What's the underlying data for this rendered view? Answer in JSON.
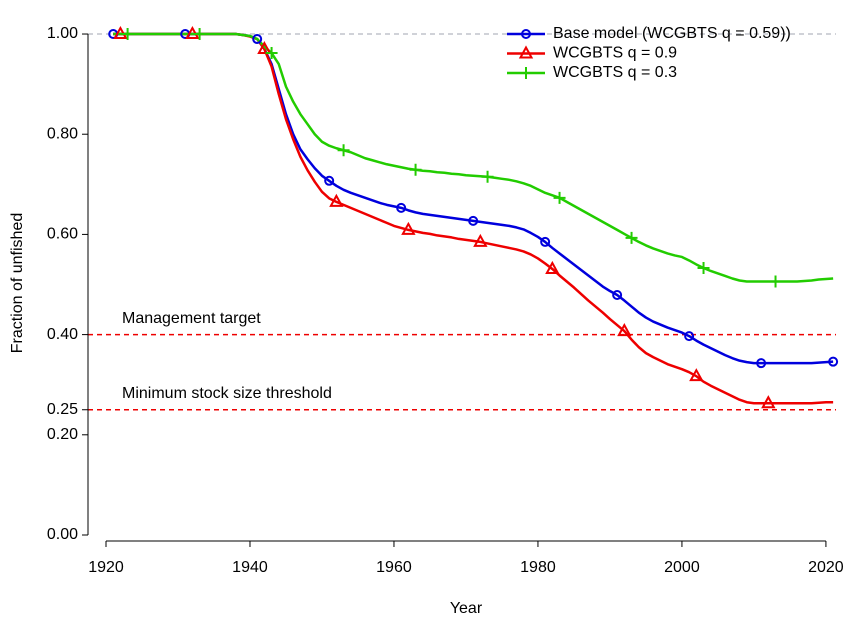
{
  "chart_data": {
    "type": "line",
    "xlabel": "Year",
    "ylabel": "Fraction of unfished",
    "x": [
      1921,
      1922,
      1923,
      1924,
      1925,
      1926,
      1927,
      1928,
      1929,
      1930,
      1931,
      1932,
      1933,
      1934,
      1935,
      1936,
      1937,
      1938,
      1939,
      1940,
      1941,
      1942,
      1943,
      1944,
      1945,
      1946,
      1947,
      1948,
      1949,
      1950,
      1951,
      1952,
      1953,
      1954,
      1955,
      1956,
      1957,
      1958,
      1959,
      1960,
      1961,
      1962,
      1963,
      1964,
      1965,
      1966,
      1967,
      1968,
      1969,
      1970,
      1971,
      1972,
      1973,
      1974,
      1975,
      1976,
      1977,
      1978,
      1979,
      1980,
      1981,
      1982,
      1983,
      1984,
      1985,
      1986,
      1987,
      1988,
      1989,
      1990,
      1991,
      1992,
      1993,
      1994,
      1995,
      1996,
      1997,
      1998,
      1999,
      2000,
      2001,
      2002,
      2003,
      2004,
      2005,
      2006,
      2007,
      2008,
      2009,
      2010,
      2011,
      2012,
      2013,
      2014,
      2015,
      2016,
      2017,
      2018,
      2019,
      2020,
      2021
    ],
    "series": [
      {
        "name": "Base model (WCGBTS q = 0.59))",
        "color": "#0000dd",
        "marker": "circle",
        "values": [
          1,
          1,
          1,
          1,
          1,
          1,
          1,
          1,
          1,
          1,
          1,
          1,
          1,
          1,
          1,
          1,
          1,
          1,
          0.998,
          0.996,
          0.99,
          0.97,
          0.94,
          0.89,
          0.84,
          0.8,
          0.77,
          0.75,
          0.732,
          0.717,
          0.707,
          0.697,
          0.689,
          0.683,
          0.678,
          0.673,
          0.668,
          0.663,
          0.659,
          0.656,
          0.653,
          0.648,
          0.644,
          0.641,
          0.639,
          0.637,
          0.635,
          0.633,
          0.631,
          0.629,
          0.627,
          0.625,
          0.623,
          0.621,
          0.619,
          0.617,
          0.614,
          0.61,
          0.603,
          0.595,
          0.585,
          0.573,
          0.562,
          0.551,
          0.54,
          0.529,
          0.518,
          0.507,
          0.496,
          0.487,
          0.479,
          0.468,
          0.456,
          0.444,
          0.434,
          0.426,
          0.42,
          0.414,
          0.409,
          0.404,
          0.397,
          0.388,
          0.38,
          0.373,
          0.366,
          0.359,
          0.353,
          0.348,
          0.345,
          0.343,
          0.343,
          0.343,
          0.343,
          0.343,
          0.343,
          0.343,
          0.343,
          0.343,
          0.344,
          0.345,
          0.346
        ]
      },
      {
        "name": "WCGBTS q = 0.9",
        "color": "#ee0000",
        "marker": "triangle",
        "values": [
          1,
          1,
          1,
          1,
          1,
          1,
          1,
          1,
          1,
          1,
          1,
          1,
          1,
          1,
          1,
          1,
          1,
          1,
          0.998,
          0.995,
          0.99,
          0.97,
          0.935,
          0.88,
          0.83,
          0.79,
          0.755,
          0.728,
          0.705,
          0.685,
          0.672,
          0.665,
          0.659,
          0.653,
          0.647,
          0.641,
          0.635,
          0.629,
          0.623,
          0.617,
          0.613,
          0.609,
          0.606,
          0.603,
          0.601,
          0.598,
          0.596,
          0.594,
          0.591,
          0.589,
          0.587,
          0.585,
          0.582,
          0.579,
          0.576,
          0.573,
          0.57,
          0.566,
          0.56,
          0.552,
          0.542,
          0.531,
          0.518,
          0.506,
          0.494,
          0.481,
          0.468,
          0.456,
          0.444,
          0.431,
          0.419,
          0.407,
          0.39,
          0.375,
          0.363,
          0.355,
          0.348,
          0.341,
          0.336,
          0.331,
          0.325,
          0.317,
          0.306,
          0.298,
          0.291,
          0.284,
          0.277,
          0.27,
          0.265,
          0.263,
          0.263,
          0.263,
          0.263,
          0.263,
          0.263,
          0.263,
          0.263,
          0.263,
          0.264,
          0.265,
          0.265
        ]
      },
      {
        "name": "WCGBTS q = 0.3",
        "color": "#22cc00",
        "marker": "plus",
        "values": [
          1,
          1,
          1,
          1,
          1,
          1,
          1,
          1,
          1,
          1,
          1,
          1,
          1,
          1,
          1,
          1,
          1,
          1,
          0.998,
          0.996,
          0.99,
          0.975,
          0.962,
          0.94,
          0.895,
          0.865,
          0.84,
          0.82,
          0.8,
          0.785,
          0.777,
          0.772,
          0.768,
          0.764,
          0.758,
          0.752,
          0.748,
          0.744,
          0.74,
          0.737,
          0.734,
          0.731,
          0.729,
          0.727,
          0.726,
          0.724,
          0.723,
          0.721,
          0.72,
          0.718,
          0.717,
          0.716,
          0.715,
          0.713,
          0.711,
          0.709,
          0.706,
          0.702,
          0.697,
          0.69,
          0.683,
          0.678,
          0.673,
          0.665,
          0.657,
          0.649,
          0.641,
          0.633,
          0.625,
          0.617,
          0.609,
          0.601,
          0.593,
          0.585,
          0.578,
          0.572,
          0.567,
          0.562,
          0.558,
          0.555,
          0.548,
          0.54,
          0.533,
          0.527,
          0.522,
          0.517,
          0.512,
          0.508,
          0.506,
          0.506,
          0.506,
          0.506,
          0.506,
          0.506,
          0.506,
          0.506,
          0.507,
          0.508,
          0.51,
          0.511,
          0.512
        ]
      }
    ],
    "xlim": [
      1917.5,
      2021.4
    ],
    "xticks": [
      1920,
      1940,
      1960,
      1980,
      2000,
      2020
    ],
    "ylim": [
      -0.012,
      1.024
    ],
    "yticks": [
      {
        "value": 0,
        "label": "0.00"
      },
      {
        "value": 0.2,
        "label": "0.20"
      },
      {
        "value": 0.25,
        "label": "0.25"
      },
      {
        "value": 0.4,
        "label": "0.40"
      },
      {
        "value": 0.6,
        "label": "0.60"
      },
      {
        "value": 0.8,
        "label": "0.80"
      },
      {
        "value": 1,
        "label": "1.00"
      }
    ],
    "hlines": [
      {
        "value": 1,
        "color": "#c0c4cc"
      },
      {
        "value": 0.4,
        "color": "#ee0000",
        "label": "Management target"
      },
      {
        "value": 0.25,
        "color": "#ee0000",
        "label": "Minimum stock size threshold"
      }
    ],
    "legend": "topright"
  }
}
